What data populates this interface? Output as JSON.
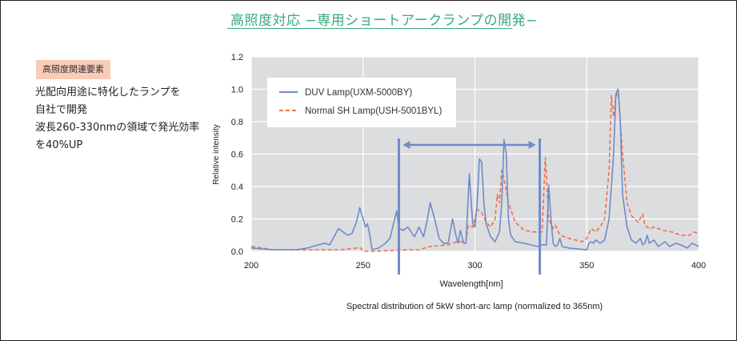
{
  "header": {
    "title": "高照度対応 −専用ショートアークランプの開発−"
  },
  "sidebar": {
    "tag": "高照度関連要素",
    "lines": [
      "光配向用途に特化したランプを",
      "自社で開発",
      "波長260-330nmの領域で発光効率",
      "を40%UP"
    ]
  },
  "chart_data": {
    "type": "line",
    "title": "",
    "caption": "Spectral distribution of 5kW short-arc lamp (normalized to 365nm)",
    "xlabel": "Wavelength[nm]",
    "ylabel": "Relative intensity",
    "xlim": [
      200,
      400
    ],
    "ylim": [
      0,
      1.2
    ],
    "xticks": [
      "200",
      "250",
      "300",
      "350",
      "400"
    ],
    "yticks": [
      "0.0",
      "0.2",
      "0.4",
      "0.6",
      "0.8",
      "1.0",
      "1.2"
    ],
    "grid": true,
    "legend_position": "top-left",
    "highlight_range": [
      266,
      329
    ],
    "series": [
      {
        "name": "DUV Lamp(UXM-5000BY)",
        "color": "#6f8bc8",
        "dash": false,
        "x": [
          200,
          210,
          220,
          225,
          230,
          233,
          235,
          237,
          239,
          241,
          243,
          245,
          247,
          248.5,
          250,
          251,
          252,
          253,
          254,
          257,
          260,
          262,
          265,
          266,
          268,
          270,
          273,
          275,
          277,
          278.5,
          280,
          282,
          284,
          286,
          288,
          290,
          291.5,
          292.5,
          293.5,
          295,
          296,
          297.5,
          299,
          300,
          301,
          302,
          303,
          304,
          305,
          307,
          309,
          311,
          312,
          313,
          314,
          315,
          316,
          318,
          322,
          328,
          330,
          332,
          333,
          334,
          335,
          336,
          337,
          338,
          339,
          342,
          350,
          351,
          352,
          353,
          354,
          356,
          358,
          360,
          362,
          363,
          364,
          365,
          366,
          368,
          370,
          372,
          374,
          375,
          376,
          377,
          378,
          380,
          382,
          385,
          387,
          390,
          392,
          395,
          397,
          400
        ],
        "y": [
          0.02,
          0.01,
          0.01,
          0.02,
          0.04,
          0.05,
          0.04,
          0.09,
          0.14,
          0.12,
          0.1,
          0.11,
          0.18,
          0.27,
          0.2,
          0.15,
          0.17,
          0.1,
          0.01,
          0.02,
          0.05,
          0.08,
          0.25,
          0.14,
          0.13,
          0.15,
          0.09,
          0.15,
          0.09,
          0.18,
          0.3,
          0.2,
          0.08,
          0.05,
          0.05,
          0.2,
          0.1,
          0.05,
          0.13,
          0.05,
          0.05,
          0.48,
          0.17,
          0.15,
          0.3,
          0.57,
          0.55,
          0.3,
          0.17,
          0.09,
          0.06,
          0.12,
          0.3,
          0.69,
          0.6,
          0.2,
          0.1,
          0.06,
          0.05,
          0.03,
          0.04,
          0.04,
          0.41,
          0.2,
          0.05,
          0.03,
          0.04,
          0.08,
          0.03,
          0.02,
          0.01,
          0.05,
          0.06,
          0.05,
          0.07,
          0.05,
          0.07,
          0.2,
          0.6,
          0.97,
          1.0,
          0.8,
          0.35,
          0.15,
          0.07,
          0.05,
          0.08,
          0.04,
          0.05,
          0.1,
          0.05,
          0.07,
          0.03,
          0.06,
          0.03,
          0.05,
          0.04,
          0.02,
          0.05,
          0.03
        ]
      },
      {
        "name": "Normal SH Lamp(USH-5001BYL)",
        "color": "#ef6f50",
        "dash": true,
        "x": [
          200,
          210,
          240,
          247,
          249,
          250,
          255,
          270,
          275,
          280,
          288,
          292,
          296,
          297,
          299,
          301,
          303,
          305,
          307,
          309,
          310,
          311,
          312,
          313,
          315,
          318,
          322,
          326,
          330,
          331.5,
          333,
          335,
          336,
          338,
          342,
          348,
          350,
          352,
          354,
          356,
          358,
          360,
          361,
          362,
          363,
          364,
          366,
          368,
          370,
          373,
          375,
          376,
          378,
          380,
          384,
          388,
          392,
          396,
          398,
          400
        ],
        "y": [
          0.03,
          0.01,
          0.01,
          0.02,
          0.02,
          0.0,
          0.0,
          0.01,
          0.01,
          0.03,
          0.04,
          0.06,
          0.06,
          0.16,
          0.15,
          0.26,
          0.24,
          0.18,
          0.15,
          0.2,
          0.35,
          0.3,
          0.5,
          0.45,
          0.3,
          0.18,
          0.13,
          0.12,
          0.12,
          0.58,
          0.2,
          0.14,
          0.16,
          0.1,
          0.08,
          0.06,
          0.08,
          0.14,
          0.12,
          0.15,
          0.2,
          0.5,
          0.96,
          0.83,
          0.95,
          1.0,
          0.6,
          0.3,
          0.22,
          0.18,
          0.23,
          0.16,
          0.14,
          0.15,
          0.13,
          0.12,
          0.1,
          0.1,
          0.12,
          0.11
        ]
      }
    ]
  }
}
